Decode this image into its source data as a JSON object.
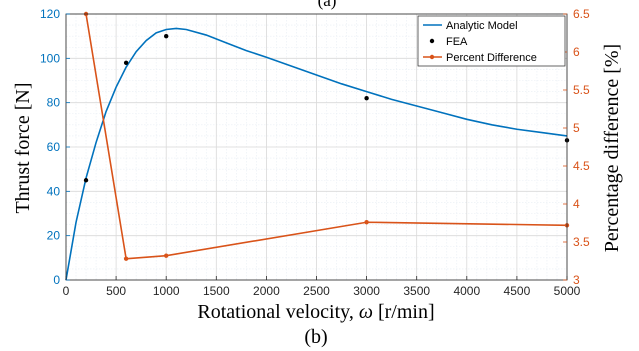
{
  "figure": {
    "top_caption": "(a)",
    "bottom_caption": "(b)"
  },
  "colors": {
    "left_axis": "#0072bd",
    "right_axis": "#d95319",
    "fea": "#000000",
    "grid_major": "#d9d9d9",
    "grid_minor": "#e8eef4"
  },
  "chart_data": {
    "type": "line",
    "xlabel_text": "Rotational velocity, ",
    "xlabel_symbol": "ω",
    "xlabel_unit": " [r/min]",
    "ylabel_left": "Thrust force [N]",
    "ylabel_right": "Percentage difference [%]",
    "xlim": [
      0,
      5000
    ],
    "ylim_left": [
      0,
      120
    ],
    "ylim_right": [
      3,
      6.5
    ],
    "x_ticks": [
      0,
      500,
      1000,
      1500,
      2000,
      2500,
      3000,
      3500,
      4000,
      4500,
      5000
    ],
    "y_left_ticks": [
      0,
      20,
      40,
      60,
      80,
      100,
      120
    ],
    "y_right_ticks": [
      3,
      3.5,
      4,
      4.5,
      5,
      5.5,
      6,
      6.5
    ],
    "grid": "on (major and minor)",
    "legend_position": "top-right",
    "series": [
      {
        "name": "Analytic Model",
        "axis": "left",
        "style": "line",
        "x": [
          0,
          100,
          200,
          300,
          400,
          500,
          600,
          700,
          800,
          900,
          1000,
          1100,
          1200,
          1400,
          1600,
          1800,
          2000,
          2250,
          2500,
          2750,
          3000,
          3250,
          3500,
          3750,
          4000,
          4250,
          4500,
          4750,
          5000
        ],
        "y": [
          0,
          26,
          46,
          62,
          76,
          87,
          96,
          103,
          108,
          111.5,
          113,
          113.5,
          113,
          110.5,
          107,
          103.5,
          100.5,
          96.5,
          92.5,
          88.5,
          85,
          81.5,
          78.5,
          75.5,
          72.5,
          70,
          68,
          66.5,
          65
        ]
      },
      {
        "name": "FEA",
        "axis": "left",
        "style": "markers",
        "x": [
          200,
          600,
          1000,
          3000,
          5000
        ],
        "y": [
          45,
          98,
          110,
          82,
          63
        ]
      },
      {
        "name": "Percent Difference",
        "axis": "right",
        "style": "line+markers",
        "x": [
          200,
          600,
          1000,
          3000,
          5000
        ],
        "y": [
          6.5,
          3.28,
          3.32,
          3.76,
          3.72
        ]
      }
    ]
  }
}
